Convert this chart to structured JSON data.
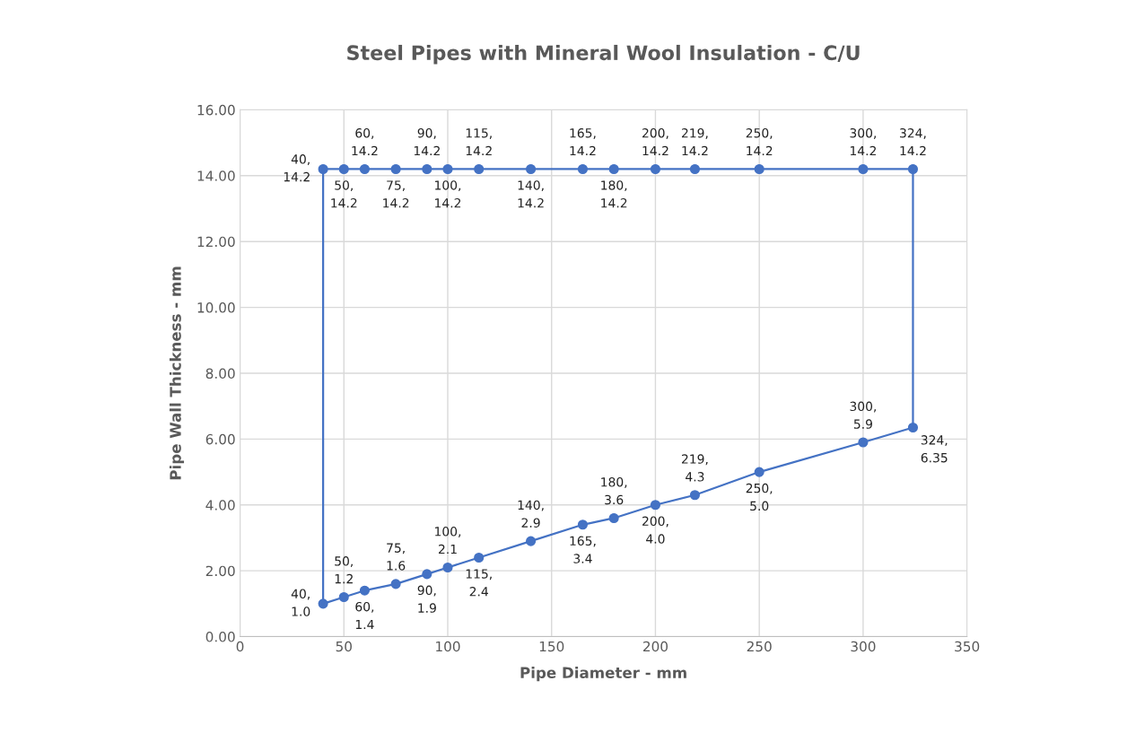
{
  "chart_data": {
    "type": "line",
    "title": "Steel Pipes with Mineral Wool Insulation - C/U",
    "xlabel": "Pipe Diameter - mm",
    "ylabel": "Pipe Wall Thickness - mm",
    "xlim": [
      0,
      350
    ],
    "xticks": [
      0,
      50,
      100,
      150,
      200,
      250,
      300,
      350
    ],
    "ylim": [
      0,
      16
    ],
    "yticks": [
      {
        "value": 0,
        "label": "0.00"
      },
      {
        "value": 2,
        "label": "2.00"
      },
      {
        "value": 4,
        "label": "4.00"
      },
      {
        "value": 6,
        "label": "6.00"
      },
      {
        "value": 8,
        "label": "8.00"
      },
      {
        "value": 10,
        "label": "10.00"
      },
      {
        "value": 12,
        "label": "12.00"
      },
      {
        "value": 14,
        "label": "14.00"
      },
      {
        "value": 16,
        "label": "16.00"
      }
    ],
    "grid": true,
    "marker": "circle",
    "line_style": "solid",
    "series": [
      {
        "color": "#4472c4",
        "x": [
          40,
          50,
          60,
          75,
          90,
          100,
          115,
          140,
          165,
          180,
          200,
          219,
          250,
          300,
          324
        ],
        "values": [
          1.0,
          1.2,
          1.4,
          1.6,
          1.9,
          2.1,
          2.4,
          2.9,
          3.4,
          3.6,
          4.0,
          4.3,
          5.0,
          5.9,
          6.35
        ],
        "value_labels": [
          "40,\n1.0",
          "50,\n1.2",
          "60,\n1.4",
          "75,\n1.6",
          "90,\n1.9",
          "100,\n2.1",
          "115,\n2.4",
          "140,\n2.9",
          "165,\n3.4",
          "180,\n3.6",
          "200,\n4.0",
          "219,\n4.3",
          "250,\n5.0",
          "300,\n5.9",
          "324,\n6.35"
        ]
      },
      {
        "color": "#4472c4",
        "x": [
          40,
          50,
          60,
          75,
          90,
          100,
          115,
          140,
          165,
          180,
          200,
          219,
          250,
          300,
          324
        ],
        "values": [
          14.2,
          14.2,
          14.2,
          14.2,
          14.2,
          14.2,
          14.2,
          14.2,
          14.2,
          14.2,
          14.2,
          14.2,
          14.2,
          14.2,
          14.2
        ],
        "value_labels": [
          "40,\n14.2",
          "50,\n14.2",
          "60,\n14.2",
          "75,\n14.2",
          "90,\n14.2",
          "100,\n14.2",
          "115,\n14.2",
          "140,\n14.2",
          "165,\n14.2",
          "180,\n14.2",
          "200,\n14.2",
          "219,\n14.2",
          "250,\n14.2",
          "300,\n14.2",
          "324,\n14.2"
        ]
      },
      {
        "color": "#4472c4",
        "marker": "none",
        "x": [
          40,
          40
        ],
        "values": [
          1.0,
          14.2
        ]
      },
      {
        "color": "#4472c4",
        "marker": "none",
        "x": [
          324,
          324
        ],
        "values": [
          6.35,
          14.2
        ]
      }
    ]
  }
}
